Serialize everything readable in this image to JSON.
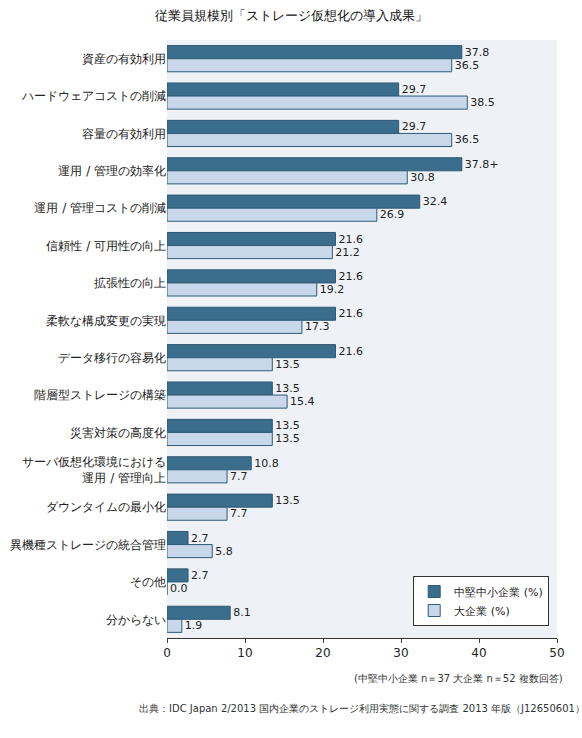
{
  "chart_data": {
    "type": "bar",
    "orientation": "horizontal",
    "title": "従業員規模別「ストレージ仮想化の導入成果」",
    "categories": [
      "資産の有効利用",
      "ハードウェアコストの削減",
      "容量の有効利用",
      "運用 / 管理の効率化",
      "運用 / 管理コストの削減",
      "信頼性 / 可用性の向上",
      "拡張性の向上",
      "柔軟な構成変更の実現",
      "データ移行の容易化",
      "階層型ストレージの構築",
      "災害対策の高度化",
      "サーバ仮想化環境における\n運用 / 管理向上",
      "ダウンタイムの最小化",
      "異機種ストレージの統合管理",
      "その他",
      "分からない"
    ],
    "series": [
      {
        "name": "中堅中小企業 (%)",
        "color": "#3b6e8c",
        "values": [
          37.8,
          29.7,
          29.7,
          37.8,
          32.4,
          21.6,
          21.6,
          21.6,
          21.6,
          13.5,
          13.5,
          10.8,
          13.5,
          2.7,
          2.7,
          8.1
        ],
        "value_labels": [
          "37.8",
          "29.7",
          "29.7",
          "37.8+",
          "32.4",
          "21.6",
          "21.6",
          "21.6",
          "21.6",
          "13.5",
          "13.5",
          "10.8",
          "13.5",
          "2.7",
          "2.7",
          "8.1"
        ]
      },
      {
        "name": "大企業 (%)",
        "color": "#c8d8ea",
        "values": [
          36.5,
          38.5,
          36.5,
          30.8,
          26.9,
          21.2,
          19.2,
          17.3,
          13.5,
          15.4,
          13.5,
          7.7,
          7.7,
          5.8,
          0.0,
          1.9
        ],
        "value_labels": [
          "36.5",
          "38.5",
          "36.5",
          "30.8",
          "26.9",
          "21.2",
          "19.2",
          "17.3",
          "13.5",
          "15.4",
          "13.5",
          "7.7",
          "7.7",
          "5.8",
          "0.0",
          "1.9"
        ]
      }
    ],
    "xlim": [
      0,
      50
    ],
    "xticks": [
      0,
      10,
      20,
      30,
      40,
      50
    ],
    "grid": false,
    "legend": "lower right",
    "data_labels": true,
    "annotations": [
      "(中堅中小企業 n＝37 大企業 n＝52 複数回答)",
      "出典：IDC Japan 2/2013 国内企業のストレージ利用実態に関する調査 2013 年版（J12650601）"
    ]
  }
}
